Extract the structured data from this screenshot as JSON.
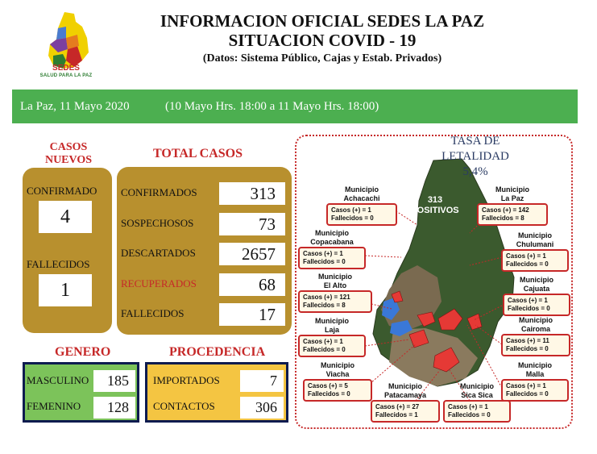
{
  "header": {
    "logo_text": "SEDES",
    "logo_subtext": "SALUD PARA LA PAZ",
    "title_line1": "INFORMACION OFICIAL SEDES LA PAZ",
    "title_line2": "SITUACION  COVID - 19",
    "title_line3": "(Datos: Sistema Público, Cajas y Estab. Privados)"
  },
  "banner": {
    "date": "La Paz, 11 Mayo  2020",
    "range": "(10 Mayo Hrs. 18:00 a 11 Mayo Hrs. 18:00)",
    "color": "#4caf50"
  },
  "casos_nuevos": {
    "title_line1": "CASOS",
    "title_line2": "NUEVOS",
    "confirmado_label": "CONFIRMADO",
    "confirmado_value": "4",
    "fallecidos_label": "FALLECIDOS",
    "fallecidos_value": "1"
  },
  "total_casos": {
    "title": "TOTAL CASOS",
    "rows": [
      {
        "label": "CONFIRMADOS",
        "value": "313"
      },
      {
        "label": "SOSPECHOSOS",
        "value": "73"
      },
      {
        "label": "DESCARTADOS",
        "value": "2657"
      },
      {
        "label": "RECUPERADOS",
        "value": "68"
      },
      {
        "label": "FALLECIDOS",
        "value": "17"
      }
    ]
  },
  "genero": {
    "title": "GENERO",
    "rows": [
      {
        "label": "MASCULINO",
        "value": "185"
      },
      {
        "label": "FEMENINO",
        "value": "128"
      }
    ]
  },
  "procedencia": {
    "title": "PROCEDENCIA",
    "rows": [
      {
        "label": "IMPORTADOS",
        "value": "7"
      },
      {
        "label": "CONTACTOS",
        "value": "306"
      }
    ]
  },
  "map": {
    "tasa_line1": "TASA  DE",
    "tasa_line2": "LETALIDAD",
    "tasa_value": "5,4%",
    "positivos_count": "313",
    "positivos_label": "POSITIVOS",
    "municipios": [
      {
        "label": "Municipio",
        "name": "Achacachi",
        "casos": "Casos (+)  =   1",
        "fallecidos": "Fallecidos =   0"
      },
      {
        "label": "Municipio",
        "name": "La Paz",
        "casos": "Casos (+)  = 142",
        "fallecidos": "Fallecidos =    8"
      },
      {
        "label": "Municipio",
        "name": "Copacabana",
        "casos": "Casos (+)  =   1",
        "fallecidos": "Fallecidos =   0"
      },
      {
        "label": "Municipio",
        "name": "Chulumani",
        "casos": "Casos (+)  =   1",
        "fallecidos": "Fallecidos =   0"
      },
      {
        "label": "Municipio",
        "name": "El Alto",
        "casos": "Casos (+)  = 121",
        "fallecidos": "Fallecidos =    8"
      },
      {
        "label": "Municipio",
        "name": "Cajuata",
        "casos": "Casos (+)  =   1",
        "fallecidos": "Fallecidos =   0"
      },
      {
        "label": "Municipio",
        "name": "Laja",
        "casos": "Casos (+)  =   1",
        "fallecidos": "Fallecidos =   0"
      },
      {
        "label": "Municipio",
        "name": "Cairoma",
        "casos": "Casos (+)  = 11",
        "fallecidos": "Fallecidos =   0"
      },
      {
        "label": "Municipio",
        "name": "Viacha",
        "casos": "Casos (+)  =   5",
        "fallecidos": "Fallecidos =   0"
      },
      {
        "label": "Municipio",
        "name": "Malla",
        "casos": "Casos (+)  =   1",
        "fallecidos": "Fallecidos =   0"
      },
      {
        "label": "Municipio",
        "name": "Patacamaya",
        "casos": "Casos (+)  = 27",
        "fallecidos": "Fallecidos =   1"
      },
      {
        "label": "Municipio",
        "name": "Sica Sica",
        "casos": "Casos (+)  =   1",
        "fallecidos": "Fallecidos =   0"
      }
    ]
  },
  "colors": {
    "accent_red": "#c62828",
    "gold": "#b8902e",
    "genero_green": "#7cc35a",
    "procedencia_yellow": "#f4c542",
    "navy_border": "#0d1b4f"
  }
}
